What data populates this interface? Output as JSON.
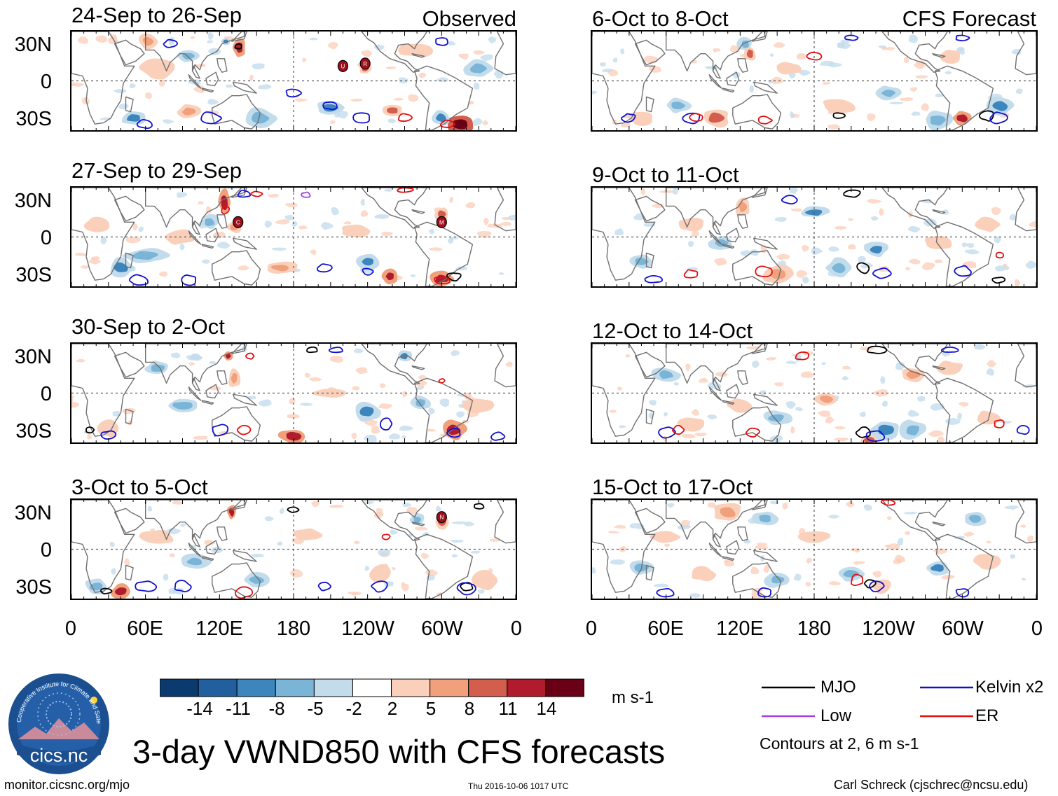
{
  "chart_data": {
    "type": "heatmap",
    "title": "3-day VWND850 with CFS forecasts",
    "variable": "VWND850",
    "units": "m s-1",
    "x_tick_labels": [
      "0",
      "60E",
      "120E",
      "180",
      "120W",
      "60W",
      "0"
    ],
    "y_tick_labels": [
      "30N",
      "0",
      "30S"
    ],
    "colorbar": {
      "levels": [
        "-14",
        "-11",
        "-8",
        "-5",
        "-2",
        "2",
        "5",
        "8",
        "11",
        "14"
      ],
      "colors": [
        "#0b3a6f",
        "#215f9e",
        "#3c86bd",
        "#7ab5d8",
        "#c3dcec",
        "#ffffff",
        "#fbd0bb",
        "#f0a07b",
        "#d45e4d",
        "#b01c2e",
        "#6a0016"
      ]
    },
    "columns": [
      {
        "label": "Observed",
        "panels": [
          {
            "period": "24-Sep to 26-Sep"
          },
          {
            "period": "27-Sep to 29-Sep"
          },
          {
            "period": "30-Sep to 2-Oct"
          },
          {
            "period": "3-Oct to 5-Oct"
          }
        ]
      },
      {
        "label": "CFS Forecast",
        "panels": [
          {
            "period": "6-Oct to 8-Oct"
          },
          {
            "period": "9-Oct to 11-Oct"
          },
          {
            "period": "12-Oct to 14-Oct"
          },
          {
            "period": "15-Oct to 17-Oct"
          }
        ]
      }
    ],
    "storm_markers": [
      {
        "panel": 0,
        "letter": "U"
      },
      {
        "panel": 0,
        "letter": "R"
      },
      {
        "panel": 1,
        "letter": "C"
      },
      {
        "panel": 1,
        "letter": "M"
      },
      {
        "panel": 3,
        "letter": "N"
      }
    ],
    "legend": {
      "entries": [
        {
          "name": "MJO",
          "color": "#000000"
        },
        {
          "name": "Kelvin x2",
          "color": "#1010d0"
        },
        {
          "name": "Low",
          "color": "#a040e0"
        },
        {
          "name": "ER",
          "color": "#e01010"
        }
      ],
      "note": "Contours at 2, 6 m s-1"
    }
  },
  "footer": {
    "website": "monitor.cicsnc.org/mjo",
    "timestamp": "Thu 2016-10-06 1017 UTC",
    "author": "Carl Schreck (cjschrec@ncsu.edu)"
  },
  "logo": {
    "name": "cics.nc",
    "ring_text": "Cooperative Institute for Climate and Satellites"
  }
}
